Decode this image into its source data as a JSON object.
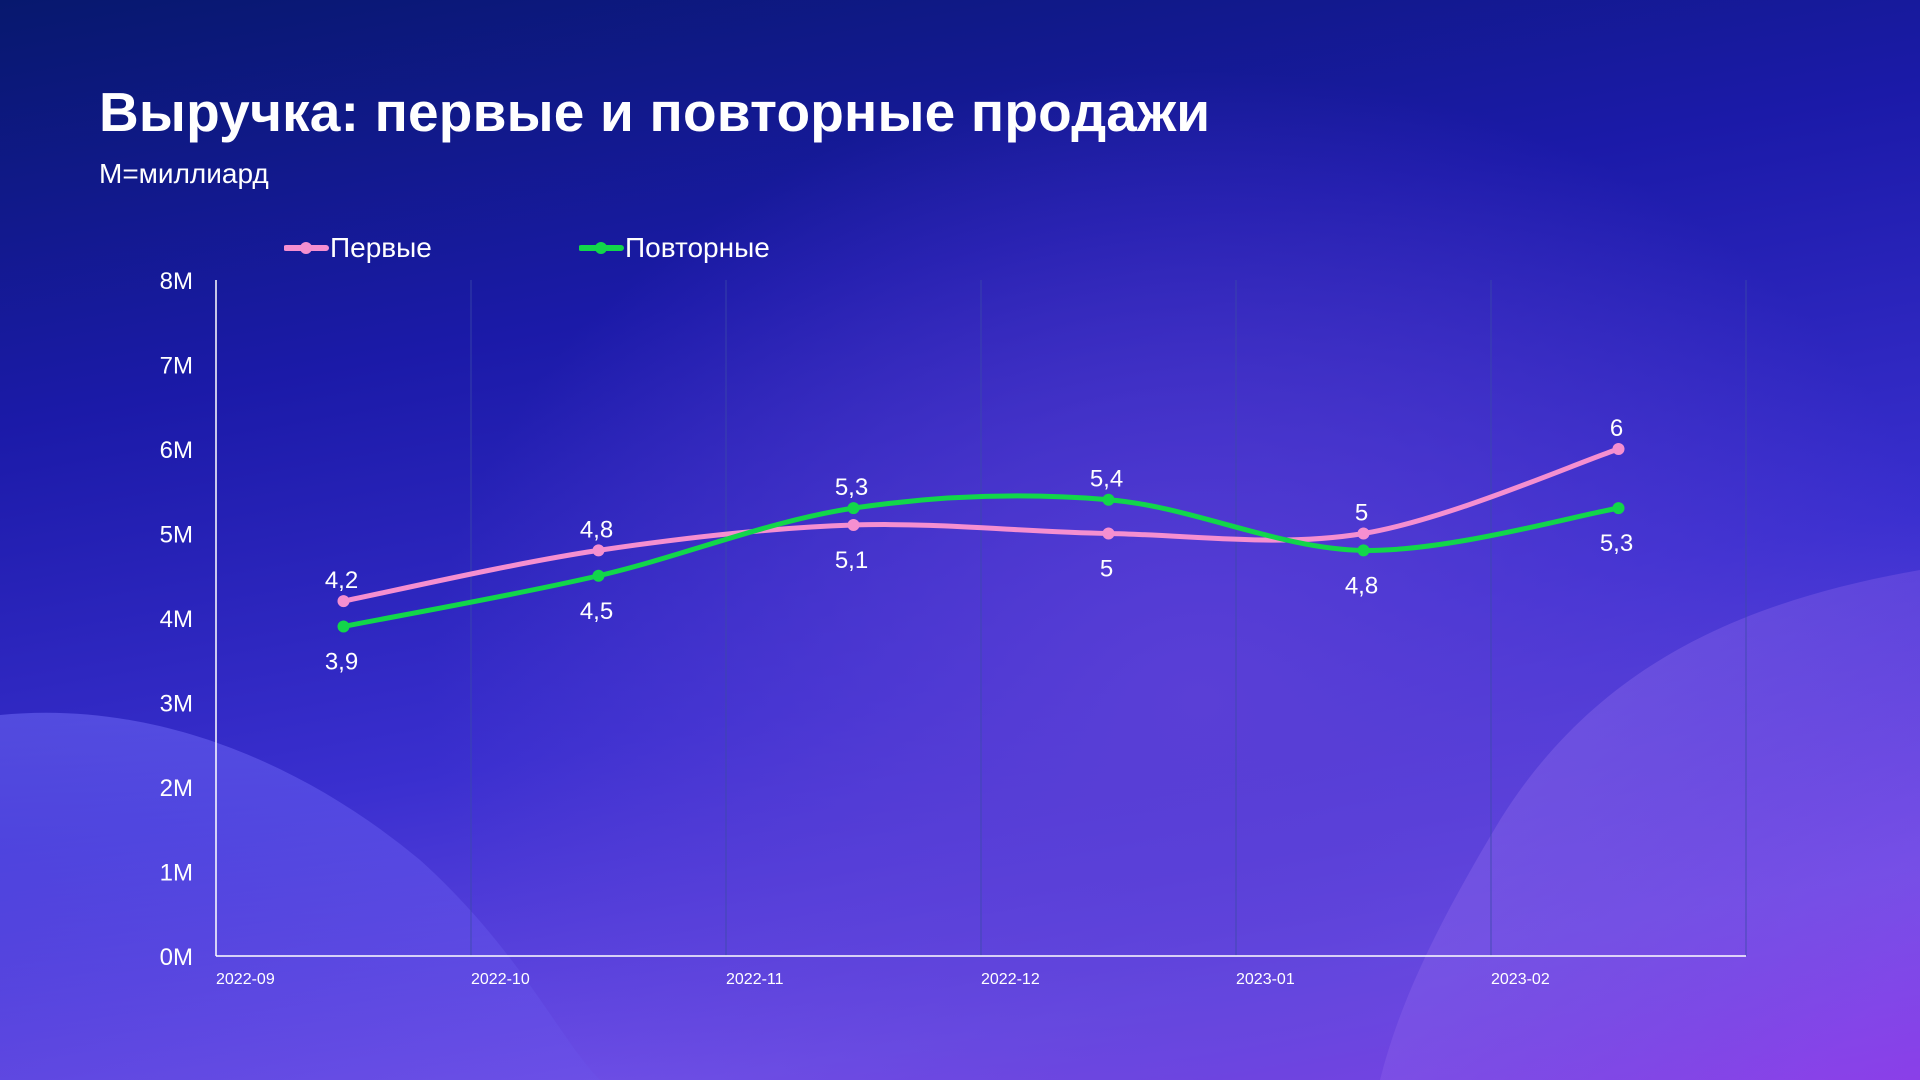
{
  "title": "Выручка: первые и повторные продажи",
  "subtitle": "M=миллиард",
  "colors": {
    "first": "#f58fd0",
    "repeat": "#12d64a",
    "grid": "#3b4aa8"
  },
  "chart_data": {
    "type": "line",
    "title": "Выручка: первые и повторные продажи",
    "subtitle": "M=миллиард",
    "x_tick_labels": [
      "2022-09",
      "2022-10",
      "2022-11",
      "2022-12",
      "2023-01",
      "2023-02"
    ],
    "y_tick_labels": [
      "0M",
      "1M",
      "2M",
      "3M",
      "4M",
      "5M",
      "6M",
      "7M",
      "8M"
    ],
    "ylim": [
      0,
      8
    ],
    "grid": "vertical",
    "legend_position": "top-left",
    "series": [
      {
        "name": "Первые",
        "color": "#f58fd0",
        "values": [
          4.2,
          4.8,
          5.1,
          5.0,
          5.0,
          6.0
        ],
        "labels": [
          "4,2",
          "4,8",
          "5,1",
          "5",
          "5",
          "6"
        ],
        "label_side": [
          "above",
          "above",
          "below",
          "below",
          "above",
          "above"
        ]
      },
      {
        "name": "Повторные",
        "color": "#12d64a",
        "values": [
          3.9,
          4.5,
          5.3,
          5.4,
          4.8,
          5.3
        ],
        "labels": [
          "3,9",
          "4,5",
          "5,3",
          "5,4",
          "4,8",
          "5,3"
        ],
        "label_side": [
          "below",
          "below",
          "above",
          "above",
          "below",
          "below"
        ]
      }
    ]
  }
}
